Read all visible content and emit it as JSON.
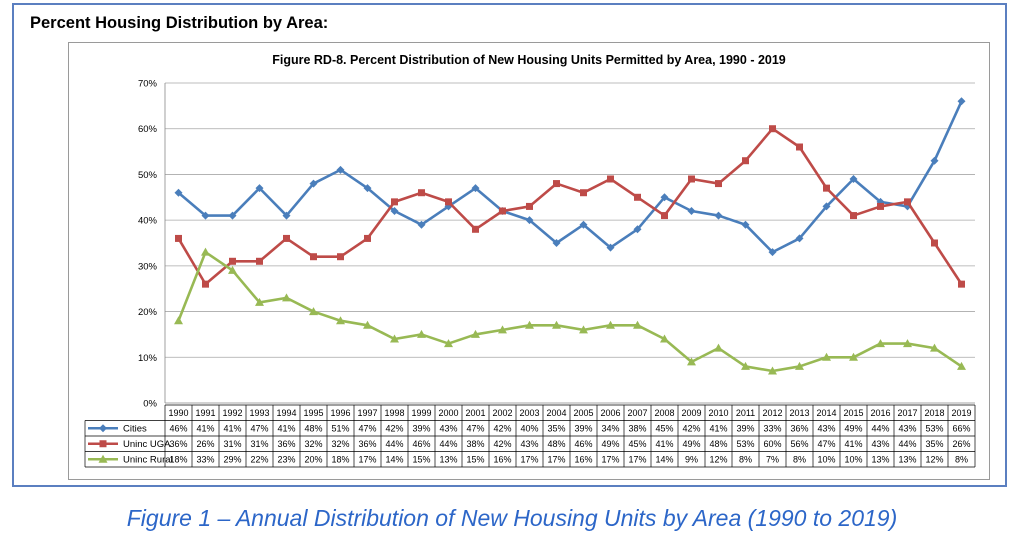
{
  "heading": "Percent Housing Distribution by Area:",
  "caption": "Figure 1 – Annual Distribution of New Housing Units by Area (1990 to 2019)",
  "chart_data": {
    "type": "line",
    "title": "Figure RD-8. Percent Distribution of New Housing Units Permitted by Area, 1990 - 2019",
    "xlabel": "",
    "ylabel": "",
    "ylim": [
      0,
      70
    ],
    "y_ticks": [
      "0%",
      "10%",
      "20%",
      "30%",
      "40%",
      "50%",
      "60%",
      "70%"
    ],
    "grid": true,
    "legend": "data-table",
    "categories": [
      "1990",
      "1991",
      "1992",
      "1993",
      "1994",
      "1995",
      "1996",
      "1997",
      "1998",
      "1999",
      "2000",
      "2001",
      "2002",
      "2003",
      "2004",
      "2005",
      "2006",
      "2007",
      "2008",
      "2009",
      "2010",
      "2011",
      "2012",
      "2013",
      "2014",
      "2015",
      "2016",
      "2017",
      "2018",
      "2019"
    ],
    "series": [
      {
        "name": "Cities",
        "color": "#4a7ebb",
        "marker": "diamond",
        "values": [
          46,
          41,
          41,
          47,
          41,
          48,
          51,
          47,
          42,
          39,
          43,
          47,
          42,
          40,
          35,
          39,
          34,
          38,
          45,
          42,
          41,
          39,
          33,
          36,
          43,
          49,
          44,
          43,
          53,
          66
        ],
        "labels": [
          "46%",
          "41%",
          "41%",
          "47%",
          "41%",
          "48%",
          "51%",
          "47%",
          "42%",
          "39%",
          "43%",
          "47%",
          "42%",
          "40%",
          "35%",
          "39%",
          "34%",
          "38%",
          "45%",
          "42%",
          "41%",
          "39%",
          "33%",
          "36%",
          "43%",
          "49%",
          "44%",
          "43%",
          "53%",
          "66%"
        ]
      },
      {
        "name": "Uninc UGA",
        "color": "#be4b48",
        "marker": "square",
        "values": [
          36,
          26,
          31,
          31,
          36,
          32,
          32,
          36,
          44,
          46,
          44,
          38,
          42,
          43,
          48,
          46,
          49,
          45,
          41,
          49,
          48,
          53,
          60,
          56,
          47,
          41,
          43,
          44,
          35,
          26
        ],
        "labels": [
          "36%",
          "26%",
          "31%",
          "31%",
          "36%",
          "32%",
          "32%",
          "36%",
          "44%",
          "46%",
          "44%",
          "38%",
          "42%",
          "43%",
          "48%",
          "46%",
          "49%",
          "45%",
          "41%",
          "49%",
          "48%",
          "53%",
          "60%",
          "56%",
          "47%",
          "41%",
          "43%",
          "44%",
          "35%",
          "26%"
        ]
      },
      {
        "name": "Uninc Rural",
        "color": "#98b954",
        "marker": "triangle",
        "values": [
          18,
          33,
          29,
          22,
          23,
          20,
          18,
          17,
          14,
          15,
          13,
          15,
          16,
          17,
          17,
          16,
          17,
          17,
          14,
          9,
          12,
          8,
          7,
          8,
          10,
          10,
          13,
          13,
          12,
          8
        ],
        "labels": [
          "18%",
          "33%",
          "29%",
          "22%",
          "23%",
          "20%",
          "18%",
          "17%",
          "14%",
          "15%",
          "13%",
          "15%",
          "16%",
          "17%",
          "17%",
          "16%",
          "17%",
          "17%",
          "14%",
          "9%",
          "12%",
          "8%",
          "7%",
          "8%",
          "10%",
          "10%",
          "13%",
          "13%",
          "12%",
          "8%"
        ]
      }
    ]
  }
}
